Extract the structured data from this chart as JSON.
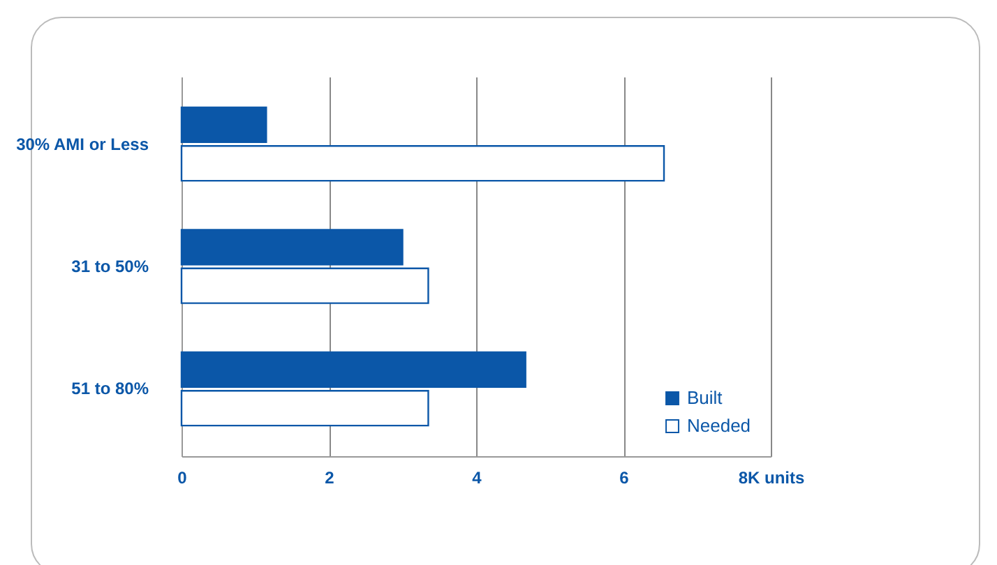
{
  "chart_data": {
    "type": "bar",
    "orientation": "horizontal",
    "categories": [
      "30% AMI or Less",
      "31 to 50%",
      "51 to 80%"
    ],
    "series": [
      {
        "name": "Built",
        "color": "#0b57a8",
        "values": [
          1.15,
          3.0,
          4.67
        ]
      },
      {
        "name": "Needed",
        "color": "#ffffff",
        "values": [
          6.55,
          3.35,
          3.35
        ]
      }
    ],
    "xlim": [
      0,
      8
    ],
    "xticks": [
      0,
      2,
      4,
      6,
      {
        "value": 8,
        "label": "8K units"
      }
    ],
    "grid": "x",
    "legend": "bottom right"
  }
}
